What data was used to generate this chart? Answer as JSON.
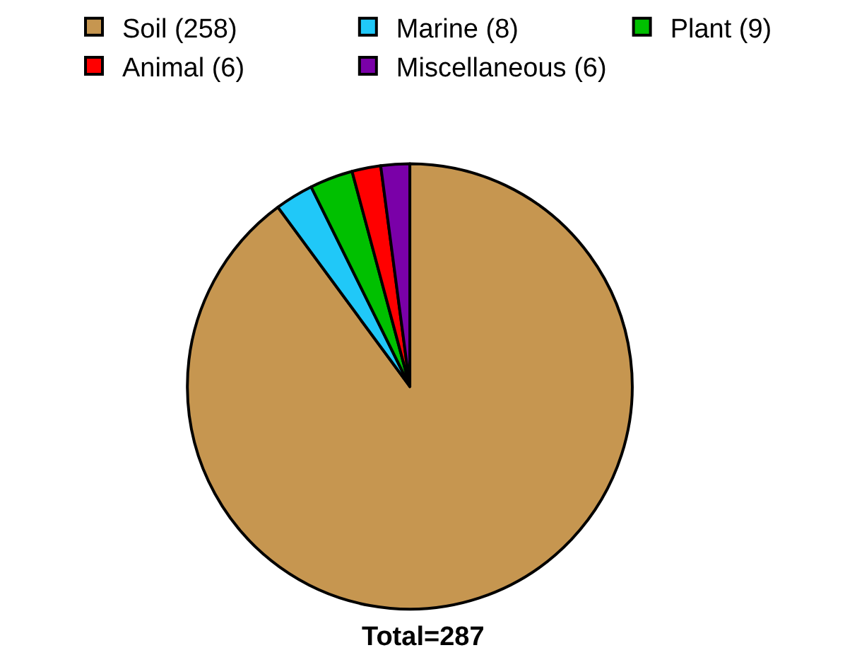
{
  "chart_data": {
    "type": "pie",
    "categories": [
      "Soil (258)",
      "Marine (8)",
      "Plant (9)",
      "Animal (6)",
      "Miscellaneous (6)"
    ],
    "values": [
      258,
      8,
      9,
      6,
      6
    ],
    "colors": [
      "#c69650",
      "#20c8f8",
      "#00c000",
      "#ff0000",
      "#7a00a8"
    ],
    "legend": "top",
    "annotations": [
      "Total=287"
    ]
  }
}
